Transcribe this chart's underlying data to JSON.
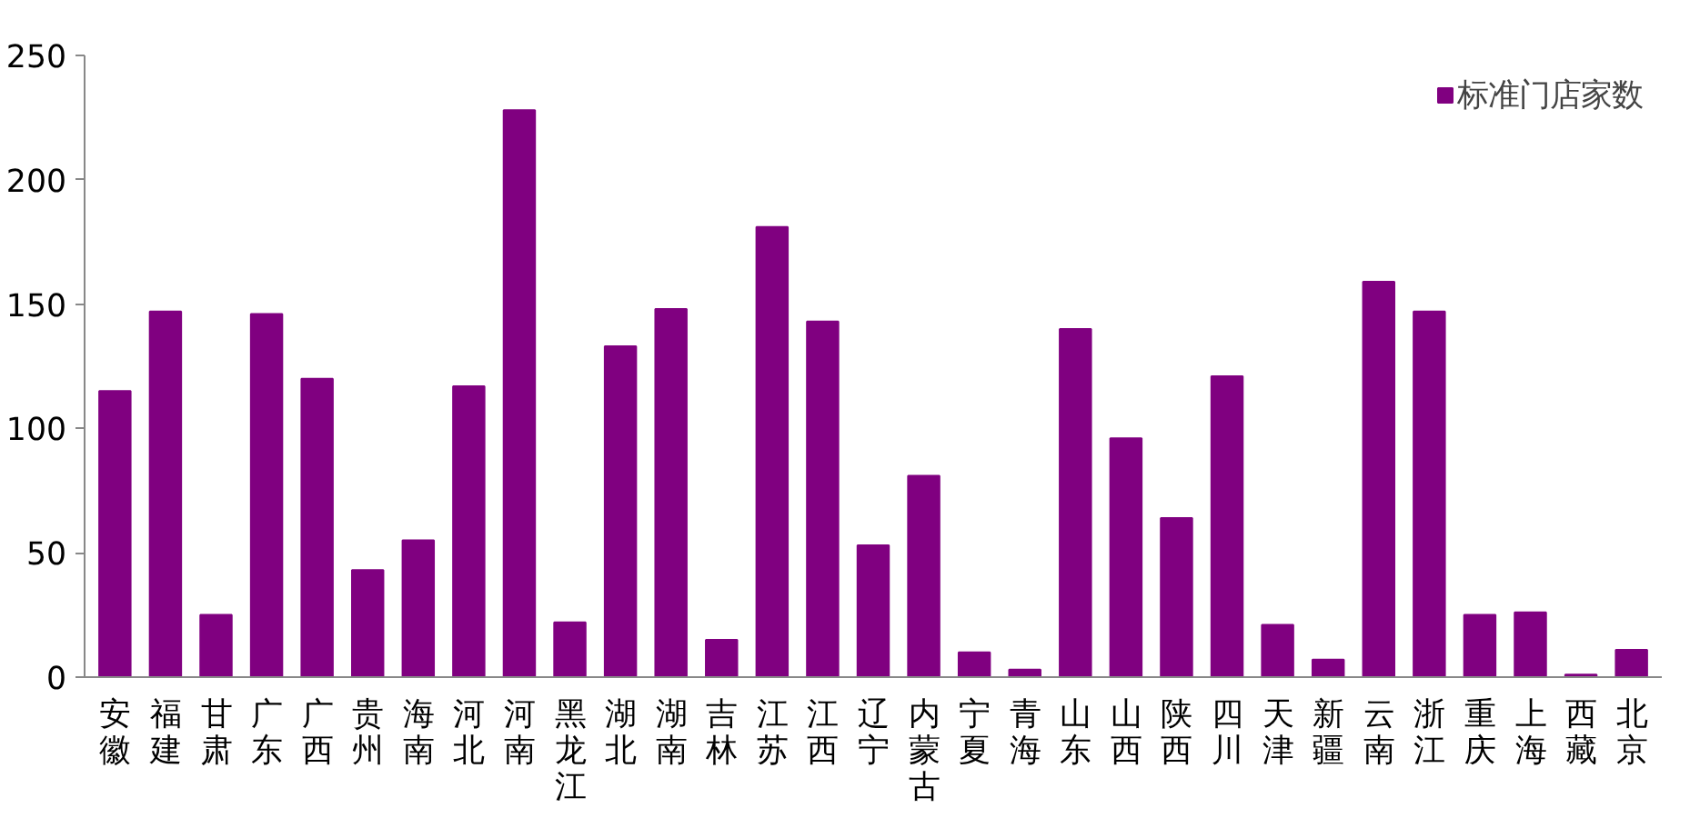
{
  "chart_data": {
    "type": "bar",
    "categories": [
      "安徽",
      "福建",
      "甘肃",
      "广东",
      "广西",
      "贵州",
      "海南",
      "河北",
      "河南",
      "黑龙江",
      "湖北",
      "湖南",
      "吉林",
      "江苏",
      "江西",
      "辽宁",
      "内蒙古",
      "宁夏",
      "青海",
      "山东",
      "山西",
      "陕西",
      "四川",
      "天津",
      "新疆",
      "云南",
      "浙江",
      "重庆",
      "上海",
      "西藏",
      "北京"
    ],
    "series": [
      {
        "name": "标准门店家数",
        "color": "#800080",
        "values": [
          115,
          147,
          25,
          146,
          120,
          43,
          55,
          117,
          228,
          22,
          133,
          148,
          15,
          181,
          143,
          53,
          81,
          10,
          3,
          140,
          96,
          64,
          121,
          21,
          7,
          159,
          147,
          25,
          26,
          1,
          11
        ]
      }
    ],
    "ylim": [
      0,
      250
    ],
    "yticks": [
      0,
      50,
      100,
      150,
      200,
      250
    ],
    "grid": false,
    "legend": "top right"
  }
}
